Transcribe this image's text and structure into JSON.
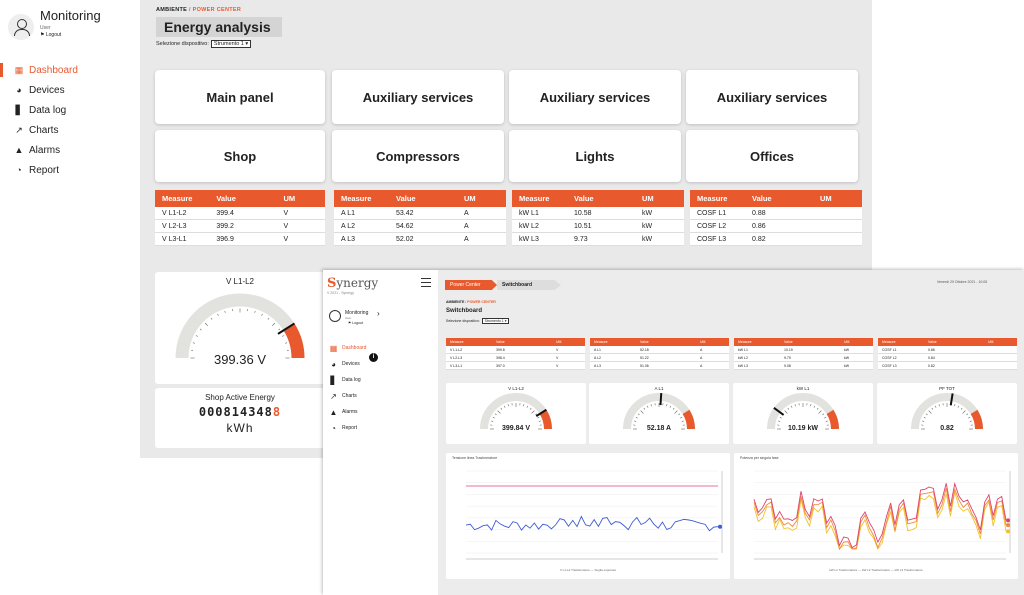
{
  "back": {
    "sidebar": {
      "user_title": "Monitoring",
      "user_sub": "User",
      "logout": "Logout",
      "items": [
        {
          "label": "Dashboard",
          "icon": "grid-icon"
        },
        {
          "label": "Devices",
          "icon": "gauge-icon"
        },
        {
          "label": "Data log",
          "icon": "bar-chart-icon"
        },
        {
          "label": "Charts",
          "icon": "line-chart-icon"
        },
        {
          "label": "Alarms",
          "icon": "bell-icon"
        },
        {
          "label": "Report",
          "icon": "pie-chart-icon"
        }
      ]
    },
    "breadcrumb": {
      "root": "AMBIENTE",
      "sep": "/",
      "current": "POWER CENTER"
    },
    "title": "Energy analysis",
    "device_select": {
      "label": "Selezione dispositivo:",
      "value": "Strumento 1"
    },
    "cards_row1": [
      "Main panel",
      "Auxiliary services",
      "Auxiliary services",
      "Auxiliary services"
    ],
    "cards_row2": [
      "Shop",
      "Compressors",
      "Lights",
      "Offices"
    ],
    "tables": [
      {
        "headers": [
          "Measure",
          "Value",
          "UM"
        ],
        "rows": [
          [
            "V L1-L2",
            "399.4",
            "V"
          ],
          [
            "V L2-L3",
            "399.2",
            "V"
          ],
          [
            "V L3-L1",
            "396.9",
            "V"
          ]
        ]
      },
      {
        "headers": [
          "Measure",
          "Value",
          "UM"
        ],
        "rows": [
          [
            "A L1",
            "53.42",
            "A"
          ],
          [
            "A L2",
            "54.62",
            "A"
          ],
          [
            "A L3",
            "52.02",
            "A"
          ]
        ]
      },
      {
        "headers": [
          "Measure",
          "Value",
          "UM"
        ],
        "rows": [
          [
            "kW L1",
            "10.58",
            "kW"
          ],
          [
            "kW L2",
            "10.51",
            "kW"
          ],
          [
            "kW L3",
            "9.73",
            "kW"
          ]
        ]
      },
      {
        "headers": [
          "Measure",
          "Value",
          "UM"
        ],
        "rows": [
          [
            "COSF L1",
            "0.88",
            ""
          ],
          [
            "COSF L2",
            "0.86",
            ""
          ],
          [
            "COSF L3",
            "0.82",
            ""
          ]
        ]
      }
    ],
    "gauge": {
      "title": "V L1-L2",
      "value": "399.36 V",
      "fraction": 0.82
    },
    "energy": {
      "title": "Shop  Active Energy",
      "digits": "0008143488",
      "unit": "kWh"
    }
  },
  "front": {
    "logo": "Synergy",
    "logo_sub": "V 2021 - Synergy",
    "user_title": "Monitoring",
    "user_sub": "User",
    "logout": "Logout",
    "nav": [
      {
        "label": "Dashboard",
        "icon": "grid-icon"
      },
      {
        "label": "Devices",
        "icon": "gauge-icon"
      },
      {
        "label": "Data log",
        "icon": "bar-chart-icon"
      },
      {
        "label": "Charts",
        "icon": "line-chart-icon"
      },
      {
        "label": "Alarms",
        "icon": "bell-icon"
      },
      {
        "label": "Report",
        "icon": "pie-chart-icon"
      }
    ],
    "info": "i",
    "tabs": [
      "Power Center",
      "Switchboard"
    ],
    "date": "Venerdì 29 Ottobre 2021 - 10:05",
    "breadcrumb": {
      "root": "AMBIENTE",
      "sep": "/",
      "current": "POWER CENTER"
    },
    "title": "Switchboard",
    "device_select": {
      "label": "Selezione dispositivo:",
      "value": "Strumento 1"
    },
    "tables": [
      {
        "headers": [
          "Measure",
          "Value",
          "UM"
        ],
        "rows": [
          [
            "V L1-L2",
            "399.8",
            "V"
          ],
          [
            "V L2-L3",
            "398.4",
            "V"
          ],
          [
            "V L3-L1",
            "397.0",
            "V"
          ]
        ]
      },
      {
        "headers": [
          "Measure",
          "Value",
          "UM"
        ],
        "rows": [
          [
            "A L1",
            "52.18",
            "A"
          ],
          [
            "A L2",
            "51.22",
            "A"
          ],
          [
            "A L3",
            "51.06",
            "A"
          ]
        ]
      },
      {
        "headers": [
          "Measure",
          "Value",
          "UM"
        ],
        "rows": [
          [
            "kW L1",
            "10.19",
            "kW"
          ],
          [
            "kW L2",
            "9.79",
            "kW"
          ],
          [
            "kW L3",
            "9.08",
            "kW"
          ]
        ]
      },
      {
        "headers": [
          "Measure",
          "Value",
          "UM"
        ],
        "rows": [
          [
            "COSF L1",
            "0.86",
            ""
          ],
          [
            "COSF L2",
            "0.84",
            ""
          ],
          [
            "COSF L3",
            "0.82",
            ""
          ]
        ]
      }
    ],
    "gauges": [
      {
        "title": "V L1-L2",
        "value": "399.84 V",
        "fraction": 0.82
      },
      {
        "title": "A L1",
        "value": "52.18 A",
        "fraction": 0.52
      },
      {
        "title": "kW L1",
        "value": "10.19 kW",
        "fraction": 0.2
      },
      {
        "title": "PF TOT",
        "value": "0.82",
        "fraction": 0.55
      }
    ],
    "charts": [
      {
        "title": "Tensione linea Trasformatore",
        "legend": "V L1-L2 Trasformatore   —   Soglia superiore"
      },
      {
        "title": "Potenza per singola fase",
        "legend": "kW L1 Trasformatore   —   kW L2 Trasformatore   —   kW L3 Trasformatore"
      }
    ]
  },
  "colors": {
    "accent": "#e85a2e",
    "line_blue": "#3f5bd6",
    "line_pink": "#e0436f",
    "line_yellow": "#f2c22e"
  }
}
